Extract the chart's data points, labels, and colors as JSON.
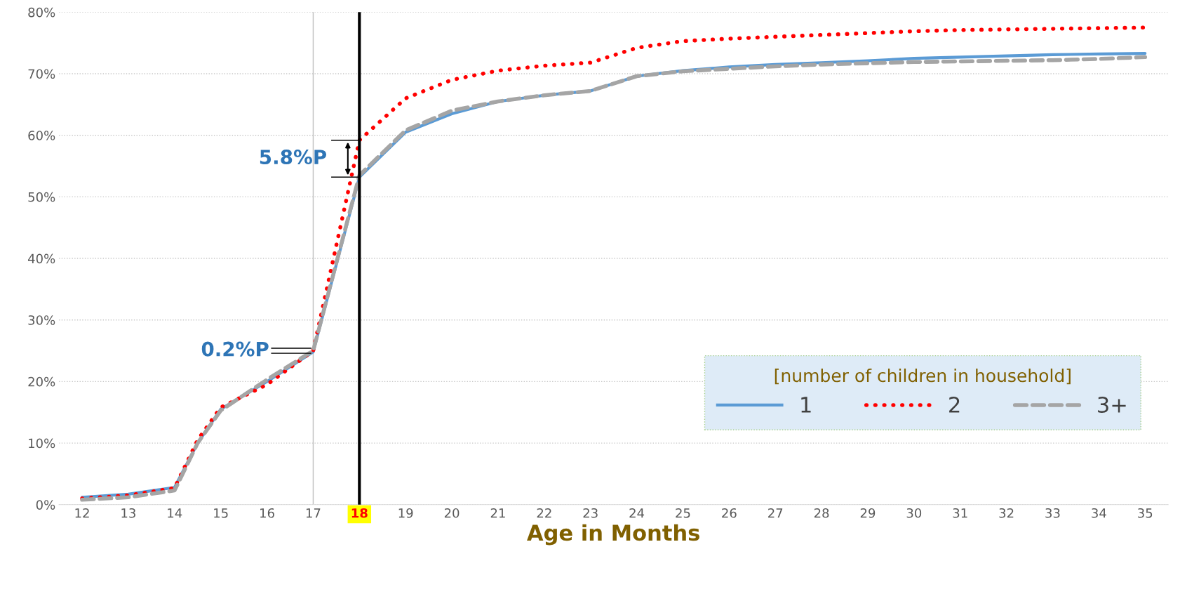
{
  "chart_data": {
    "type": "line",
    "x": [
      12,
      13,
      14,
      14.5,
      15,
      16,
      17,
      18,
      19,
      20,
      21,
      22,
      23,
      24,
      25,
      26,
      27,
      28,
      29,
      30,
      31,
      32,
      33,
      34,
      35
    ],
    "series": [
      {
        "name": "1",
        "color": "#5b9bd5",
        "line_style": "solid",
        "values": [
          1.2,
          1.7,
          2.8,
          10,
          15.5,
          20,
          24.8,
          53.2,
          60.5,
          63.5,
          65.5,
          66.5,
          67.2,
          69.6,
          70.5,
          71.1,
          71.5,
          71.8,
          72.1,
          72.5,
          72.7,
          72.9,
          73.1,
          73.2,
          73.3
        ]
      },
      {
        "name": "2",
        "color": "#ff0000",
        "line_style": "dotted",
        "values": [
          1.0,
          1.5,
          2.7,
          10.5,
          15.8,
          19.5,
          25.0,
          59.2,
          66.0,
          69.0,
          70.5,
          71.3,
          71.8,
          74.2,
          75.3,
          75.7,
          76.0,
          76.3,
          76.6,
          76.9,
          77.1,
          77.2,
          77.3,
          77.4,
          77.5
        ]
      },
      {
        "name": "3+",
        "color": "#a5a5a5",
        "line_style": "dashed",
        "values": [
          0.8,
          1.2,
          2.3,
          10,
          15.3,
          20.3,
          25.0,
          53.5,
          60.8,
          64.0,
          65.5,
          66.5,
          67.2,
          69.6,
          70.4,
          70.8,
          71.2,
          71.5,
          71.7,
          71.9,
          72.0,
          72.1,
          72.2,
          72.4,
          72.7
        ]
      }
    ],
    "xlabel": "Age in Months",
    "legend_title": "[number of children in household]",
    "legend": "bottom right",
    "grid": "y",
    "xlim": [
      11.5,
      35.5
    ],
    "xticks": [
      12,
      13,
      14,
      15,
      16,
      17,
      18,
      19,
      20,
      21,
      22,
      23,
      24,
      25,
      26,
      27,
      28,
      29,
      30,
      31,
      32,
      33,
      34,
      35
    ],
    "ylim": [
      0,
      80
    ],
    "yticks": [
      {
        "value": 0,
        "label": "0%"
      },
      {
        "value": 10,
        "label": "10%"
      },
      {
        "value": 20,
        "label": "20%"
      },
      {
        "value": 30,
        "label": "30%"
      },
      {
        "value": 40,
        "label": "40%"
      },
      {
        "value": 50,
        "label": "50%"
      },
      {
        "value": 60,
        "label": "60%"
      },
      {
        "value": 70,
        "label": "70%"
      },
      {
        "value": 80,
        "label": "80%"
      }
    ],
    "ref_lines": [
      {
        "axis": "x",
        "value": 18,
        "color": "#000000",
        "line_style": "solid"
      },
      {
        "axis": "x",
        "value": 17,
        "color": "#bfbfbf",
        "line_style": "solid"
      }
    ],
    "annotations": [
      {
        "text": "5.8%P",
        "x": 18,
        "y": 56.2
      },
      {
        "text": "0.2%P",
        "x": 17,
        "y": 25
      }
    ]
  }
}
